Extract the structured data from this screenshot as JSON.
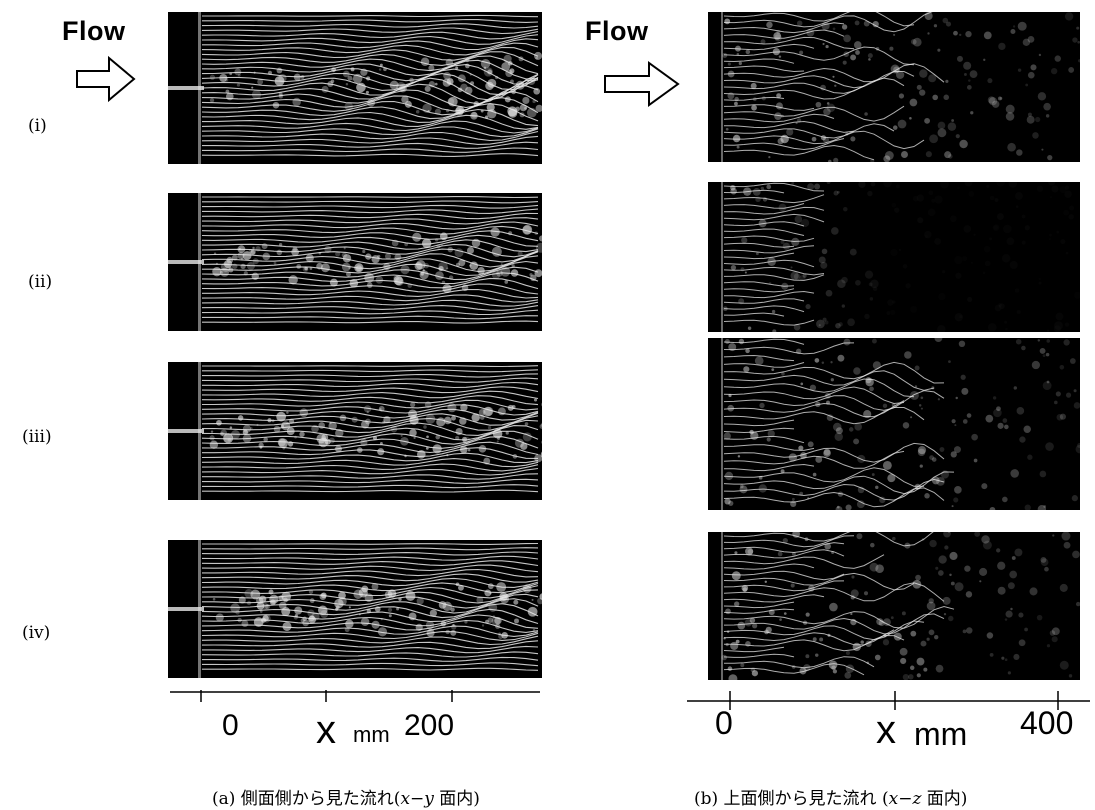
{
  "flow_label": "Flow",
  "row_labels": [
    "(ⅰ)",
    "(ⅱ)",
    "(ⅲ)",
    "(ⅳ)"
  ],
  "left_axis": {
    "ticks": [
      "0",
      "200"
    ],
    "variable": "x",
    "unit": "mm"
  },
  "right_axis": {
    "ticks": [
      "0",
      "400"
    ],
    "variable": "x",
    "unit": "mm"
  },
  "captions": {
    "a_prefix": "(a)  側面側から見た流れ(",
    "a_var": "x",
    "a_mid": "−",
    "a_var2": "y",
    "a_suffix": " 面内)",
    "b_prefix": "(b)  上面側から見た流れ (",
    "b_var": "x",
    "b_mid": "−",
    "b_var2": "z",
    "b_suffix": " 面内)"
  },
  "colors": {
    "background": "#ffffff",
    "photo": "#000000",
    "smoke": "#e8e8e8"
  },
  "icons": {
    "flow_arrow": "outlined-right-arrow-icon"
  }
}
